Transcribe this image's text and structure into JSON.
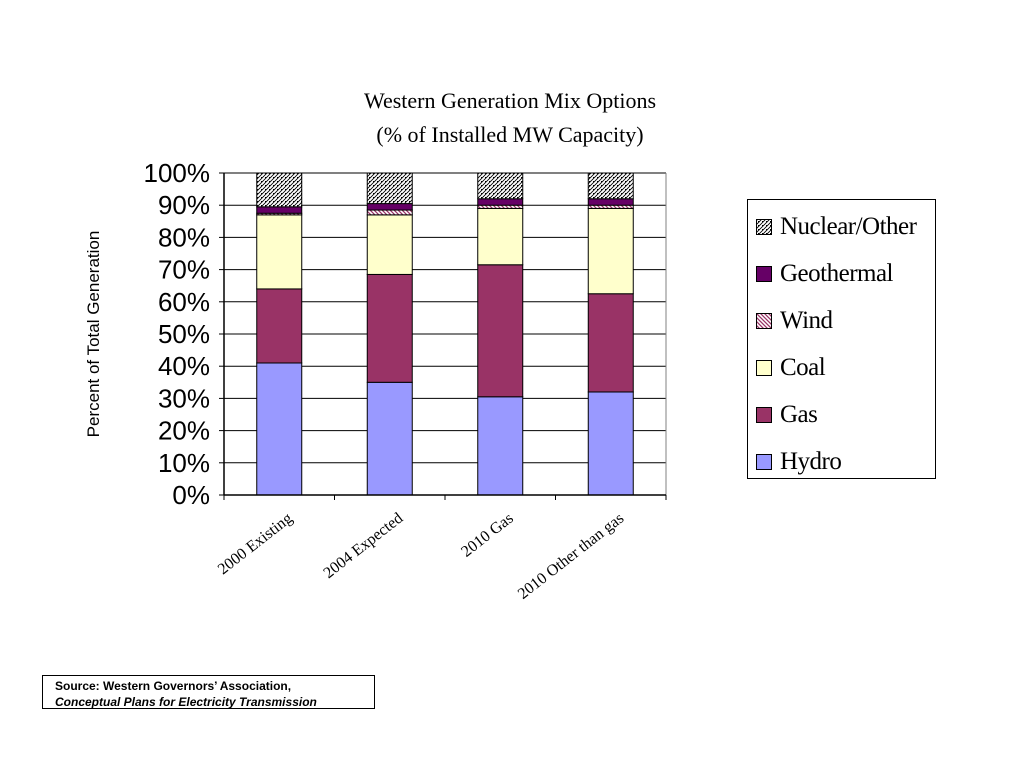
{
  "chart_data": {
    "type": "bar",
    "stacked": true,
    "title": "Western Generation Mix Options",
    "subtitle": "(% of Installed MW Capacity)",
    "xlabel": "",
    "ylabel": "Percent of Total Generation",
    "ylim": [
      0,
      100
    ],
    "yticks": [
      "0%",
      "10%",
      "20%",
      "30%",
      "40%",
      "50%",
      "60%",
      "70%",
      "80%",
      "90%",
      "100%"
    ],
    "grid": true,
    "legend_position": "right",
    "categories": [
      "2000 Existing",
      "2004 Expected",
      "2010 Gas",
      "2010 Other than gas"
    ],
    "series": [
      {
        "name": "Hydro",
        "color": "#9999ff",
        "values": [
          41,
          35,
          30.5,
          32
        ]
      },
      {
        "name": "Gas",
        "color": "#993366",
        "values": [
          23,
          33.5,
          41,
          30.5
        ]
      },
      {
        "name": "Coal",
        "color": "#ffffcc",
        "values": [
          23,
          18.5,
          17.5,
          26.5
        ]
      },
      {
        "name": "Wind",
        "color": "#993366",
        "pattern": "hatch",
        "values": [
          0.5,
          1.5,
          1,
          1
        ]
      },
      {
        "name": "Geothermal",
        "color": "#660066",
        "values": [
          2,
          2,
          2,
          2
        ]
      },
      {
        "name": "Nuclear/Other",
        "color": "#ffffff",
        "pattern": "dots",
        "values": [
          10.5,
          9.5,
          8,
          8
        ]
      }
    ]
  },
  "legend": {
    "items": [
      "Nuclear/Other",
      "Geothermal",
      "Wind",
      "Coal",
      "Gas",
      "Hydro"
    ]
  },
  "source": {
    "line1": "Source:  Western Governors’ Association,",
    "line2": "Conceptual Plans for Electricity Transmission"
  }
}
